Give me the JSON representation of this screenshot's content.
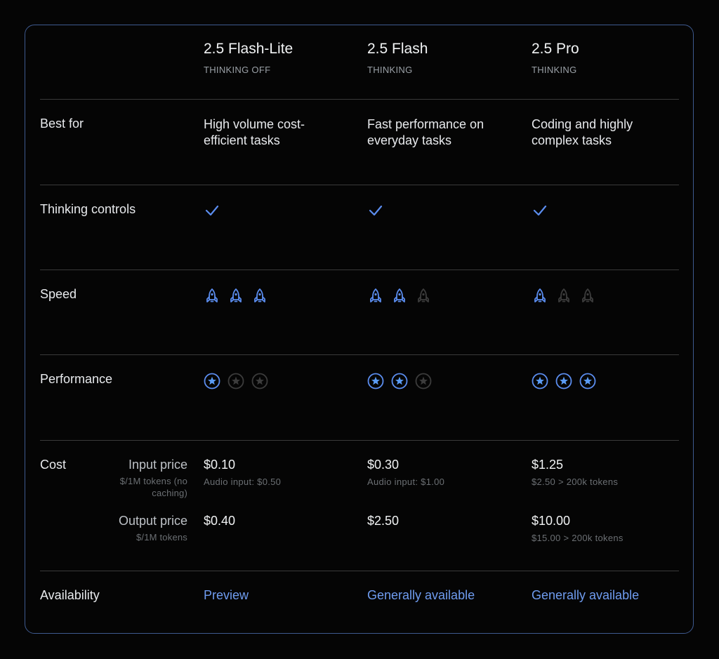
{
  "models": [
    {
      "name": "2.5 Flash-Lite",
      "mode": "THINKING OFF"
    },
    {
      "name": "2.5 Flash",
      "mode": "THINKING"
    },
    {
      "name": "2.5 Pro",
      "mode": "THINKING"
    }
  ],
  "rows": {
    "best_for": {
      "label": "Best for",
      "values": [
        "High volume cost-efficient tasks",
        "Fast performance on everyday tasks",
        "Coding and highly complex tasks"
      ]
    },
    "thinking_controls": {
      "label": "Thinking controls",
      "values": [
        "check-icon",
        "check-icon",
        "check-icon"
      ]
    },
    "speed": {
      "label": "Speed",
      "max": 3,
      "values": [
        3,
        2,
        1
      ],
      "icon": "rocket-icon"
    },
    "performance": {
      "label": "Performance",
      "max": 3,
      "values": [
        1,
        2,
        3
      ],
      "icon": "star-circle-icon"
    },
    "cost": {
      "label": "Cost",
      "input": {
        "title": "Input price",
        "sub": "$/1M tokens (no caching)",
        "values": [
          {
            "price": "$0.10",
            "note": "Audio input: $0.50"
          },
          {
            "price": "$0.30",
            "note": "Audio input: $1.00"
          },
          {
            "price": "$1.25",
            "note": "$2.50 > 200k tokens"
          }
        ]
      },
      "output": {
        "title": "Output price",
        "sub": "$/1M tokens",
        "values": [
          {
            "price": "$0.40",
            "note": ""
          },
          {
            "price": "$2.50",
            "note": ""
          },
          {
            "price": "$10.00",
            "note": "$15.00 > 200k tokens"
          }
        ]
      }
    },
    "availability": {
      "label": "Availability",
      "values": [
        "Preview",
        "Generally available",
        "Generally available"
      ]
    }
  },
  "colors": {
    "accent": "#5b8def",
    "inactive": "#3c3c3c",
    "border": "#3e5a8f",
    "background": "#050505"
  }
}
